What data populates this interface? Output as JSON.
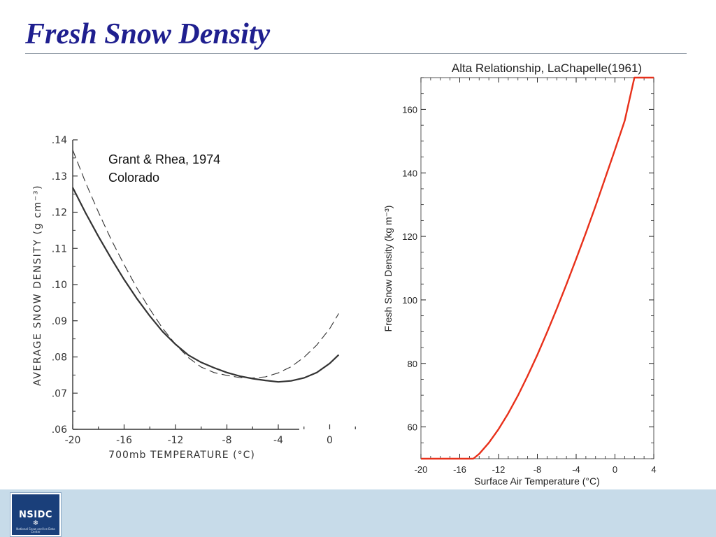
{
  "slide": {
    "title": "Fresh Snow Density"
  },
  "logo": {
    "text": "NSIDC",
    "subtext": "National Snow and Ice Data Center",
    "icon": "snowflake-icon"
  },
  "colors": {
    "title": "#1f1f8f",
    "footer": "#c7dbe9",
    "alta_line": "#e8301a"
  },
  "chart_data": [
    {
      "type": "line",
      "annotation": [
        "Grant & Rhea, 1974",
        "Colorado"
      ],
      "xlabel": "700mb   TEMPERATURE   (°C)",
      "ylabel": "AVERAGE SNOW DENSITY   (g cm⁻³)",
      "xlim": [
        -20,
        2
      ],
      "ylim": [
        0.06,
        0.14
      ],
      "x_ticks": [
        "-20",
        "-16",
        "-12",
        "-8",
        "-4",
        "0"
      ],
      "y_ticks": [
        ".06",
        ".07",
        ".08",
        ".09",
        ".10",
        ".11",
        ".12",
        ".13",
        ".14"
      ],
      "grid": false,
      "series": [
        {
          "style": "solid",
          "x": [
            -20,
            -19,
            -18,
            -17,
            -16,
            -15,
            -14,
            -13,
            -12,
            -11,
            -10,
            -9,
            -8,
            -7,
            -6,
            -5,
            -4,
            -3,
            -2,
            -1,
            0,
            0.7
          ],
          "y": [
            0.1268,
            0.1198,
            0.1133,
            0.1072,
            0.1014,
            0.0961,
            0.0913,
            0.087,
            0.0835,
            0.0805,
            0.0785,
            0.077,
            0.0757,
            0.0747,
            0.074,
            0.0735,
            0.0731,
            0.0734,
            0.0742,
            0.0757,
            0.0782,
            0.0806
          ]
        },
        {
          "style": "dashed",
          "x": [
            -20,
            -19,
            -18,
            -17,
            -16,
            -15,
            -14,
            -13,
            -12,
            -11,
            -10,
            -9,
            -8,
            -7,
            -6,
            -5,
            -4,
            -3,
            -2,
            -1,
            0,
            0.7
          ],
          "y": [
            0.1372,
            0.1282,
            0.12,
            0.1124,
            0.1055,
            0.099,
            0.0932,
            0.0879,
            0.0835,
            0.0798,
            0.0772,
            0.0757,
            0.0749,
            0.0743,
            0.0742,
            0.0745,
            0.0756,
            0.0773,
            0.0799,
            0.0833,
            0.0878,
            0.092
          ]
        }
      ]
    },
    {
      "type": "line",
      "title": "Alta Relationship, LaChapelle(1961)",
      "xlabel": "Surface Air Temperature (°C)",
      "ylabel": "Fresh Snow Density (kg m⁻³)",
      "xlim": [
        -20,
        4
      ],
      "ylim": [
        50,
        170
      ],
      "x_ticks": [
        "-20",
        "-16",
        "-12",
        "-8",
        "-4",
        "0",
        "4"
      ],
      "y_ticks": [
        "60",
        "80",
        "100",
        "120",
        "140",
        "160"
      ],
      "grid": false,
      "series": [
        {
          "color": "#e8301a",
          "x": [
            -20,
            -14.6,
            -14,
            -13,
            -12,
            -11,
            -10,
            -9,
            -8,
            -7,
            -6,
            -5,
            -4,
            -3,
            -2,
            -1,
            0,
            1,
            2,
            4
          ],
          "y": [
            50,
            50,
            51.5,
            55,
            59.3,
            64.3,
            69.9,
            76.1,
            82.7,
            89.8,
            97.2,
            104.9,
            112.9,
            121.1,
            129.6,
            138.4,
            147.3,
            156.4,
            170,
            170
          ]
        }
      ]
    }
  ]
}
